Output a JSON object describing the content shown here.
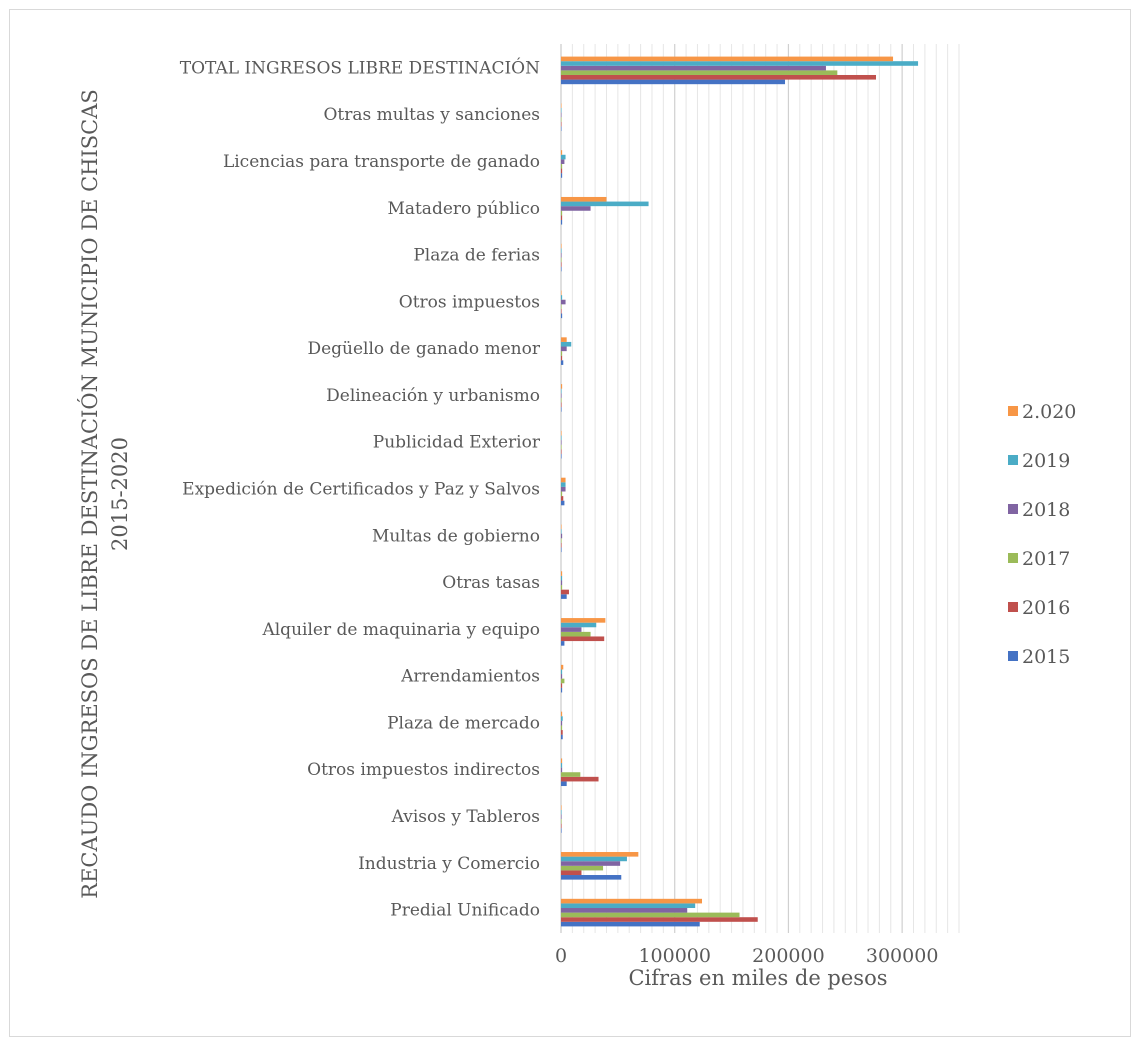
{
  "chart_data": {
    "type": "bar",
    "orientation": "horizontal",
    "title": "",
    "ylabel": "RECAUDO INGRESOS DE LIBRE DESTINACIÓN MUNICIPIO DE CHISCAS 2015-2020",
    "ylabel_lines": [
      "RECAUDO INGRESOS DE LIBRE DESTINACIÓN MUNICIPIO DE CHISCAS",
      "2015-2020"
    ],
    "xlabel": "Cifras en miles de pesos",
    "xlim": [
      0,
      350000
    ],
    "xticks": [
      0,
      100000,
      200000,
      300000
    ],
    "xtick_labels": [
      "0",
      "100000",
      "200000",
      "300000"
    ],
    "grid": true,
    "legend_position": "right",
    "categories": [
      "Predial Unificado",
      "Industria y Comercio",
      "Avisos y Tableros",
      "Otros impuestos indirectos",
      "Plaza de mercado",
      "Arrendamientos",
      "Alquiler de maquinaria y equipo",
      "Otras tasas",
      "Multas de gobierno",
      "Expedición de Certificados y Paz y Salvos",
      "Publicidad Exterior",
      "Delineación y urbanismo",
      "Degüello de ganado menor",
      "Otros impuestos",
      "Plaza de ferias",
      "Matadero público",
      "Licencias para transporte de ganado",
      "Otras multas y sanciones",
      "TOTAL INGRESOS LIBRE DESTINACIÓN"
    ],
    "series": [
      {
        "name": "2015",
        "color": "#4472C4",
        "values": [
          122000,
          53000,
          500,
          5000,
          1500,
          1000,
          3000,
          5000,
          500,
          3000,
          500,
          500,
          2000,
          1000,
          500,
          1000,
          1000,
          300,
          197000
        ]
      },
      {
        "name": "2016",
        "color": "#C0504D",
        "values": [
          173000,
          18000,
          500,
          33000,
          1500,
          1000,
          38000,
          7000,
          500,
          2000,
          500,
          500,
          1000,
          500,
          500,
          1000,
          1000,
          300,
          277000
        ]
      },
      {
        "name": "2017",
        "color": "#9BBB59",
        "values": [
          157000,
          37000,
          500,
          17000,
          1000,
          3000,
          26000,
          1000,
          500,
          1000,
          500,
          500,
          1000,
          500,
          500,
          1000,
          1000,
          300,
          243000
        ]
      },
      {
        "name": "2018",
        "color": "#8064A2",
        "values": [
          111000,
          52000,
          500,
          1000,
          1000,
          1000,
          18000,
          1000,
          1000,
          4000,
          500,
          500,
          5000,
          4000,
          500,
          26000,
          3000,
          300,
          233000
        ]
      },
      {
        "name": "2019",
        "color": "#4BACC6",
        "values": [
          118000,
          58000,
          500,
          1000,
          1500,
          1000,
          31000,
          1000,
          500,
          4000,
          500,
          500,
          9000,
          1000,
          500,
          77000,
          4000,
          300,
          314000
        ]
      },
      {
        "name": "2.020",
        "color": "#F79646",
        "values": [
          124000,
          68000,
          500,
          1000,
          1000,
          2000,
          39000,
          1000,
          500,
          4000,
          500,
          1000,
          5000,
          500,
          500,
          40000,
          1000,
          300,
          292000
        ]
      }
    ]
  }
}
